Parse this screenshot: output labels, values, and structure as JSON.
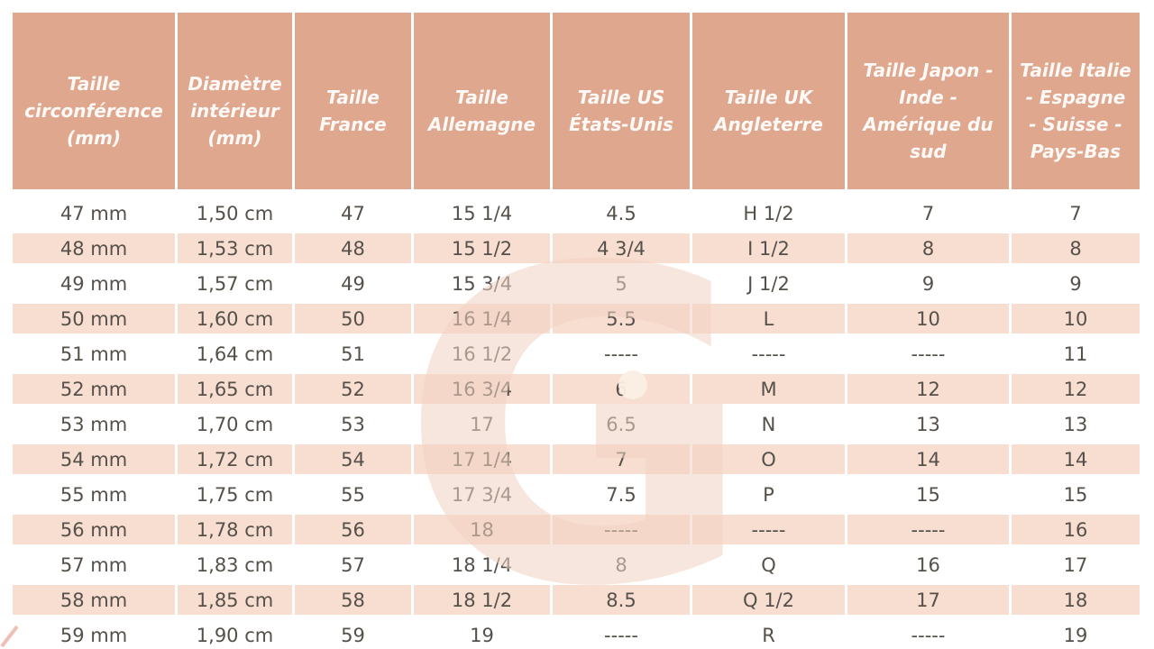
{
  "chart_data": {
    "type": "table",
    "columns": [
      "Taille circonférence (mm)",
      "Diamètre intérieur (mm)",
      "Taille France",
      "Taille Allemagne",
      "Taille US États-Unis",
      "Taille UK Angleterre",
      "Taille Japon - Inde - Amérique du sud",
      "Taille Italie - Espagne - Suisse - Pays-Bas"
    ],
    "rows": [
      [
        "47 mm",
        "1,50 cm",
        "47",
        "15 1/4",
        "4.5",
        "H 1/2",
        "7",
        "7"
      ],
      [
        "48 mm",
        "1,53 cm",
        "48",
        "15 1/2",
        "4 3/4",
        "I 1/2",
        "8",
        "8"
      ],
      [
        "49 mm",
        "1,57 cm",
        "49",
        "15 3/4",
        "5",
        "J 1/2",
        "9",
        "9"
      ],
      [
        "50 mm",
        "1,60 cm",
        "50",
        "16 1/4",
        "5.5",
        "L",
        "10",
        "10"
      ],
      [
        "51 mm",
        "1,64 cm",
        "51",
        "16 1/2",
        "-----",
        "-----",
        "-----",
        "11"
      ],
      [
        "52 mm",
        "1,65 cm",
        "52",
        "16 3/4",
        "6",
        "M",
        "12",
        "12"
      ],
      [
        "53 mm",
        "1,70 cm",
        "53",
        "17",
        "6.5",
        "N",
        "13",
        "13"
      ],
      [
        "54 mm",
        "1,72 cm",
        "54",
        "17 1/4",
        "7",
        "O",
        "14",
        "14"
      ],
      [
        "55 mm",
        "1,75 cm",
        "55",
        "17 3/4",
        "7.5",
        "P",
        "15",
        "15"
      ],
      [
        "56 mm",
        "1,78 cm",
        "56",
        "18",
        "-----",
        "-----",
        "-----",
        "16"
      ],
      [
        "57 mm",
        "1,83 cm",
        "57",
        "18 1/4",
        "8",
        "Q",
        "16",
        "17"
      ],
      [
        "58 mm",
        "1,85 cm",
        "58",
        "18 1/2",
        "8.5",
        "Q 1/2",
        "17",
        "18"
      ],
      [
        "59 mm",
        "1,90 cm",
        "59",
        "19",
        "-----",
        "R",
        "-----",
        "19"
      ]
    ]
  },
  "watermark": {
    "letter": "G"
  },
  "colors": {
    "header_bg": "#e0a78f",
    "row_alt_bg": "#f8ded1",
    "body_text": "#55504a",
    "header_text": "#fdf9f6",
    "watermark_color": "#f2d3c2",
    "watermark_dot": "#fbeee4",
    "page_bg": "#ffffff"
  }
}
